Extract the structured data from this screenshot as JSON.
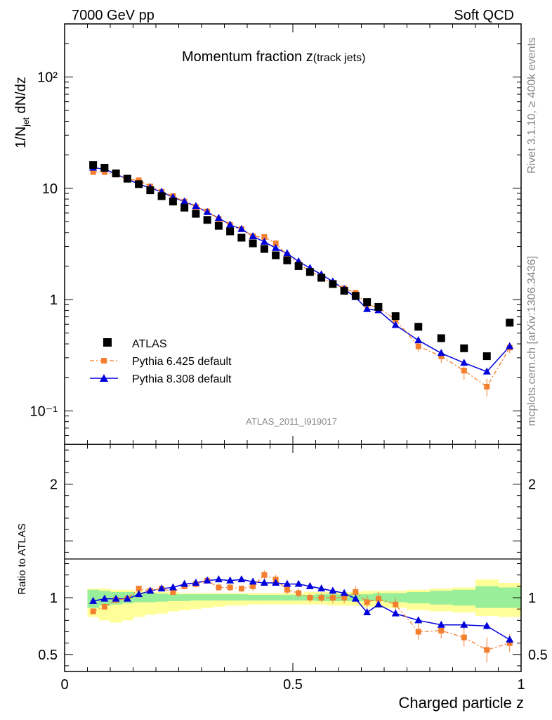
{
  "header": {
    "left": "7000 GeV pp",
    "right": "Soft QCD"
  },
  "side": {
    "rivet": "Rivet 3.1.10, ≥ 400k events",
    "mcplots": "mcplots.cern.ch [arXiv:1306.3436]"
  },
  "main": {
    "title_main": "Momentum fraction ",
    "title_var": "z",
    "title_sub": "(track jets)",
    "analysis_id": "ATLAS_2011_I919017",
    "ylabel_pre": "1/N",
    "ylabel_sub": "jet",
    "ylabel_post": " dN/dz"
  },
  "ratio": {
    "ylabel": "Ratio to ATLAS"
  },
  "xlabel": "Charged particle z",
  "legend": [
    {
      "label": "ATLAS",
      "color": "#000000",
      "marker": "square"
    },
    {
      "label": "Pythia 6.425 default",
      "color": "#f47f2e",
      "marker": "small-square-dashdot"
    },
    {
      "label": "Pythia 8.308 default",
      "color": "#0000dd",
      "marker": "triangle-solid"
    }
  ],
  "chart_data": [
    {
      "type": "scatter",
      "yscale": "log",
      "xlim": [
        0,
        1
      ],
      "ylim": [
        0.05,
        300
      ],
      "yticks": [
        {
          "v": 0.1,
          "label": "10⁻¹"
        },
        {
          "v": 1,
          "label": "1"
        },
        {
          "v": 10,
          "label": "10"
        },
        {
          "v": 100,
          "label": "10²"
        }
      ],
      "x": [
        0.0625,
        0.0875,
        0.1125,
        0.1375,
        0.1625,
        0.1875,
        0.2125,
        0.2375,
        0.2625,
        0.2875,
        0.3125,
        0.3375,
        0.3625,
        0.3875,
        0.4125,
        0.4375,
        0.4625,
        0.4875,
        0.5125,
        0.5375,
        0.5625,
        0.5875,
        0.6125,
        0.6375,
        0.6625,
        0.6875,
        0.725,
        0.775,
        0.825,
        0.875,
        0.925,
        0.975
      ],
      "series": [
        {
          "name": "ATLAS",
          "values": [
            16.2,
            15.3,
            13.6,
            12.2,
            10.9,
            9.6,
            8.5,
            7.6,
            6.7,
            5.9,
            5.2,
            4.6,
            4.1,
            3.6,
            3.2,
            2.85,
            2.5,
            2.25,
            2.0,
            1.77,
            1.57,
            1.38,
            1.2,
            1.08,
            0.95,
            0.86,
            0.71,
            0.57,
            0.45,
            0.365,
            0.31,
            0.62
          ]
        },
        {
          "name": "Pythia 6.425 default",
          "values": [
            14.0,
            14.0,
            13.3,
            12.0,
            11.8,
            10.4,
            9.3,
            8.5,
            7.6,
            6.8,
            6.2,
            5.3,
            4.7,
            4.3,
            3.7,
            3.65,
            3.2,
            2.5,
            2.1,
            1.8,
            1.58,
            1.4,
            1.26,
            1.15,
            0.9,
            0.85,
            0.66,
            0.38,
            0.31,
            0.23,
            0.165,
            0.37
          ],
          "err": [
            0.5,
            0.4,
            0.3,
            0.3,
            0.3,
            0.25,
            0.2,
            0.2,
            0.2,
            0.2,
            0.15,
            0.15,
            0.15,
            0.12,
            0.12,
            0.12,
            0.1,
            0.1,
            0.08,
            0.07,
            0.06,
            0.06,
            0.06,
            0.06,
            0.05,
            0.05,
            0.04,
            0.04,
            0.04,
            0.04,
            0.03,
            0.04
          ]
        },
        {
          "name": "Pythia 8.308 default",
          "values": [
            15.3,
            14.9,
            13.4,
            12.1,
            10.9,
            10.1,
            9.3,
            8.3,
            7.6,
            6.9,
            6.1,
            5.4,
            4.7,
            4.3,
            3.7,
            3.3,
            2.9,
            2.6,
            2.2,
            1.92,
            1.68,
            1.45,
            1.24,
            1.05,
            0.82,
            0.8,
            0.59,
            0.43,
            0.33,
            0.27,
            0.225,
            0.38
          ]
        }
      ]
    },
    {
      "type": "scatter",
      "yscale": "linear",
      "xlim": [
        0,
        1
      ],
      "ylim": [
        0.35,
        2.35
      ],
      "yticks": [
        {
          "v": 0.5,
          "label": "0.5"
        },
        {
          "v": 1,
          "label": "1"
        },
        {
          "v": 2,
          "label": "2"
        }
      ],
      "xticks": [
        {
          "v": 0,
          "label": "0"
        },
        {
          "v": 0.5,
          "label": "0.5"
        },
        {
          "v": 1,
          "label": "1"
        }
      ],
      "x": [
        0.0625,
        0.0875,
        0.1125,
        0.1375,
        0.1625,
        0.1875,
        0.2125,
        0.2375,
        0.2625,
        0.2875,
        0.3125,
        0.3375,
        0.3625,
        0.3875,
        0.4125,
        0.4375,
        0.4625,
        0.4875,
        0.5125,
        0.5375,
        0.5625,
        0.5875,
        0.6125,
        0.6375,
        0.6625,
        0.6875,
        0.725,
        0.775,
        0.825,
        0.875,
        0.925,
        0.975
      ],
      "series": [
        {
          "name": "Pythia 6.425 default",
          "values": [
            0.88,
            0.92,
            0.98,
            0.99,
            1.08,
            1.06,
            1.08,
            1.05,
            1.1,
            1.12,
            1.15,
            1.09,
            1.09,
            1.08,
            1.1,
            1.2,
            1.16,
            1.07,
            1.04,
            1.0,
            1.0,
            1.0,
            1.0,
            1.05,
            0.96,
            0.99,
            0.94,
            0.7,
            0.71,
            0.65,
            0.54,
            0.6
          ],
          "err": [
            0.02,
            0.02,
            0.02,
            0.02,
            0.02,
            0.02,
            0.02,
            0.02,
            0.02,
            0.03,
            0.03,
            0.03,
            0.03,
            0.03,
            0.04,
            0.04,
            0.04,
            0.04,
            0.04,
            0.04,
            0.04,
            0.05,
            0.05,
            0.05,
            0.06,
            0.06,
            0.06,
            0.07,
            0.07,
            0.08,
            0.11,
            0.08
          ]
        },
        {
          "name": "Pythia 8.308 default",
          "values": [
            0.97,
            0.99,
            0.99,
            0.99,
            1.03,
            1.06,
            1.08,
            1.09,
            1.12,
            1.13,
            1.15,
            1.16,
            1.15,
            1.16,
            1.14,
            1.13,
            1.13,
            1.12,
            1.12,
            1.1,
            1.08,
            1.06,
            1.04,
            0.99,
            0.87,
            0.94,
            0.86,
            0.8,
            0.76,
            0.76,
            0.75,
            0.63
          ],
          "err": [
            0.01,
            0.01,
            0.01,
            0.01,
            0.01,
            0.01,
            0.01,
            0.01,
            0.01,
            0.01,
            0.01,
            0.01,
            0.01,
            0.01,
            0.01,
            0.01,
            0.01,
            0.01,
            0.01,
            0.01,
            0.01,
            0.01,
            0.01,
            0.02,
            0.02,
            0.02,
            0.02,
            0.02,
            0.02,
            0.03,
            0.03,
            0.03
          ]
        }
      ],
      "bands": {
        "edges": [
          0.05,
          0.075,
          0.1,
          0.125,
          0.15,
          0.175,
          0.2,
          0.225,
          0.25,
          0.275,
          0.3,
          0.325,
          0.35,
          0.375,
          0.4,
          0.425,
          0.45,
          0.475,
          0.5,
          0.525,
          0.55,
          0.575,
          0.6,
          0.625,
          0.65,
          0.675,
          0.7,
          0.75,
          0.8,
          0.85,
          0.9,
          0.95,
          1.0
        ],
        "green": [
          [
            0.91,
            1.07
          ],
          [
            0.93,
            1.06
          ],
          [
            0.94,
            1.05
          ],
          [
            0.95,
            1.05
          ],
          [
            0.96,
            1.04
          ],
          [
            0.96,
            1.04
          ],
          [
            0.965,
            1.035
          ],
          [
            0.97,
            1.03
          ],
          [
            0.97,
            1.03
          ],
          [
            0.975,
            1.03
          ],
          [
            0.975,
            1.03
          ],
          [
            0.975,
            1.03
          ],
          [
            0.975,
            1.03
          ],
          [
            0.975,
            1.03
          ],
          [
            0.975,
            1.025
          ],
          [
            0.975,
            1.025
          ],
          [
            0.975,
            1.025
          ],
          [
            0.975,
            1.025
          ],
          [
            0.975,
            1.025
          ],
          [
            0.975,
            1.025
          ],
          [
            0.97,
            1.03
          ],
          [
            0.97,
            1.03
          ],
          [
            0.97,
            1.03
          ],
          [
            0.97,
            1.03
          ],
          [
            0.97,
            1.03
          ],
          [
            0.97,
            1.04
          ],
          [
            0.96,
            1.04
          ],
          [
            0.95,
            1.05
          ],
          [
            0.94,
            1.06
          ],
          [
            0.93,
            1.07
          ],
          [
            0.91,
            1.1
          ],
          [
            0.91,
            1.09
          ]
        ],
        "yellow": [
          [
            0.83,
            1.08
          ],
          [
            0.8,
            1.08
          ],
          [
            0.78,
            1.07
          ],
          [
            0.8,
            1.07
          ],
          [
            0.83,
            1.06
          ],
          [
            0.85,
            1.05
          ],
          [
            0.86,
            1.05
          ],
          [
            0.88,
            1.05
          ],
          [
            0.89,
            1.04
          ],
          [
            0.9,
            1.04
          ],
          [
            0.91,
            1.04
          ],
          [
            0.92,
            1.04
          ],
          [
            0.93,
            1.04
          ],
          [
            0.93,
            1.04
          ],
          [
            0.94,
            1.04
          ],
          [
            0.94,
            1.04
          ],
          [
            0.94,
            1.04
          ],
          [
            0.94,
            1.04
          ],
          [
            0.94,
            1.04
          ],
          [
            0.94,
            1.05
          ],
          [
            0.94,
            1.05
          ],
          [
            0.93,
            1.05
          ],
          [
            0.93,
            1.05
          ],
          [
            0.93,
            1.05
          ],
          [
            0.92,
            1.06
          ],
          [
            0.91,
            1.06
          ],
          [
            0.91,
            1.06
          ],
          [
            0.89,
            1.07
          ],
          [
            0.88,
            1.08
          ],
          [
            0.87,
            1.09
          ],
          [
            0.84,
            1.16
          ],
          [
            0.83,
            1.13
          ]
        ]
      }
    }
  ]
}
